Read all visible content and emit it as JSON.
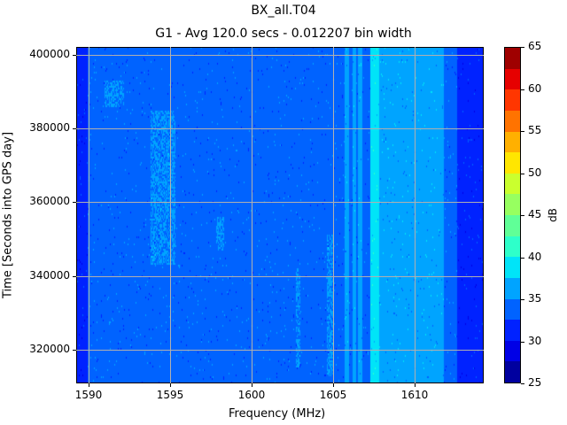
{
  "chart_data": {
    "type": "heatmap",
    "title": "BX_all.T04",
    "subtitle": "G1 - Avg 120.0 secs - 0.012207 bin width",
    "xlabel": "Frequency (MHz)",
    "ylabel": "Time [Seconds into GPS day]",
    "xlim": [
      1589.24,
      1614.24
    ],
    "ylim": [
      310870,
      402160
    ],
    "xticks": [
      1590,
      1595,
      1600,
      1605,
      1610
    ],
    "yticks": [
      320000,
      340000,
      360000,
      380000,
      400000
    ],
    "grid": true,
    "colorbar": {
      "label": "dB",
      "range": [
        25,
        65
      ],
      "ticks": [
        25,
        30,
        35,
        40,
        45,
        50,
        55,
        60,
        65
      ],
      "levels": [
        25,
        27.5,
        30,
        32.5,
        35,
        37.5,
        40,
        42.5,
        45,
        47.5,
        50,
        52.5,
        55,
        57.5,
        60,
        62.5,
        65
      ],
      "colors": [
        "#00009f",
        "#0000e6",
        "#0022ff",
        "#0063ff",
        "#00a4ff",
        "#00e4f8",
        "#2effca",
        "#60ff97",
        "#97ff60",
        "#caff2e",
        "#ffe600",
        "#ffb000",
        "#ff7300",
        "#ff3600",
        "#e60000",
        "#9f0000"
      ]
    },
    "frequency_profile_db": [
      {
        "from": 1589.24,
        "to": 1589.95,
        "db": 31
      },
      {
        "from": 1589.95,
        "to": 1605.7,
        "db": 33.5
      },
      {
        "from": 1605.7,
        "to": 1606.0,
        "db": 36
      },
      {
        "from": 1606.0,
        "to": 1606.2,
        "db": 33.5
      },
      {
        "from": 1606.2,
        "to": 1606.4,
        "db": 36
      },
      {
        "from": 1606.4,
        "to": 1606.5,
        "db": 33.5
      },
      {
        "from": 1606.5,
        "to": 1606.8,
        "db": 36.5
      },
      {
        "from": 1606.8,
        "to": 1607.3,
        "db": 34
      },
      {
        "from": 1607.3,
        "to": 1607.8,
        "db": 37.5
      },
      {
        "from": 1607.8,
        "to": 1611.8,
        "db": 36
      },
      {
        "from": 1611.8,
        "to": 1612.6,
        "db": 34
      },
      {
        "from": 1612.6,
        "to": 1614.24,
        "db": 31
      }
    ],
    "interference_patches_db": [
      {
        "f": [
          1593.8,
          1595.3
        ],
        "t": [
          343000,
          385000
        ],
        "db": 36
      },
      {
        "f": [
          1591.0,
          1592.2
        ],
        "t": [
          386000,
          393000
        ],
        "db": 36
      },
      {
        "f": [
          1597.8,
          1598.3
        ],
        "t": [
          347000,
          356000
        ],
        "db": 36
      },
      {
        "f": [
          1602.7,
          1603.0
        ],
        "t": [
          315000,
          342000
        ],
        "db": 36
      },
      {
        "f": [
          1604.6,
          1605.0
        ],
        "t": [
          313000,
          351000
        ],
        "db": 36
      },
      {
        "f": [
          1607.3,
          1607.8
        ],
        "t": [
          311000,
          345000
        ],
        "db": 38.5
      }
    ]
  }
}
